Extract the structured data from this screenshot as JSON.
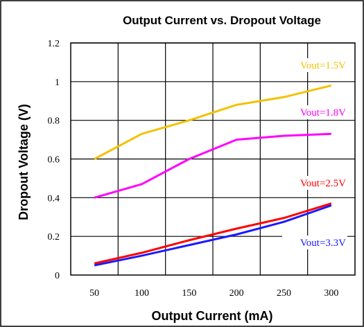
{
  "chart_data": {
    "type": "line",
    "title": "Output Current vs. Dropout Voltage",
    "xlabel": "Output Current (mA)",
    "ylabel": "Dropout Voltage (V)",
    "x": [
      50,
      100,
      150,
      200,
      250,
      300
    ],
    "x_ticks": [
      "50",
      "100",
      "150",
      "200",
      "250",
      "300"
    ],
    "y_ticks": [
      "0",
      "0.2",
      "0.4",
      "0.6",
      "0.8",
      "1",
      "1.2"
    ],
    "xlim": [
      25,
      325
    ],
    "ylim": [
      0,
      1.2
    ],
    "grid": true,
    "series": [
      {
        "name": "Vout=1.5V",
        "color": "#f2c200",
        "values": [
          0.6,
          0.73,
          0.8,
          0.88,
          0.92,
          0.98
        ]
      },
      {
        "name": "Vout=1.8V",
        "color": "#ff00ff",
        "values": [
          0.4,
          0.47,
          0.6,
          0.7,
          0.72,
          0.73
        ]
      },
      {
        "name": "Vout=2.5V",
        "color": "#ff0000",
        "values": [
          0.06,
          0.115,
          0.18,
          0.24,
          0.295,
          0.37
        ]
      },
      {
        "name": "Vout=3.3V",
        "color": "#1a1aff",
        "values": [
          0.05,
          0.1,
          0.155,
          0.21,
          0.275,
          0.36
        ]
      }
    ]
  }
}
